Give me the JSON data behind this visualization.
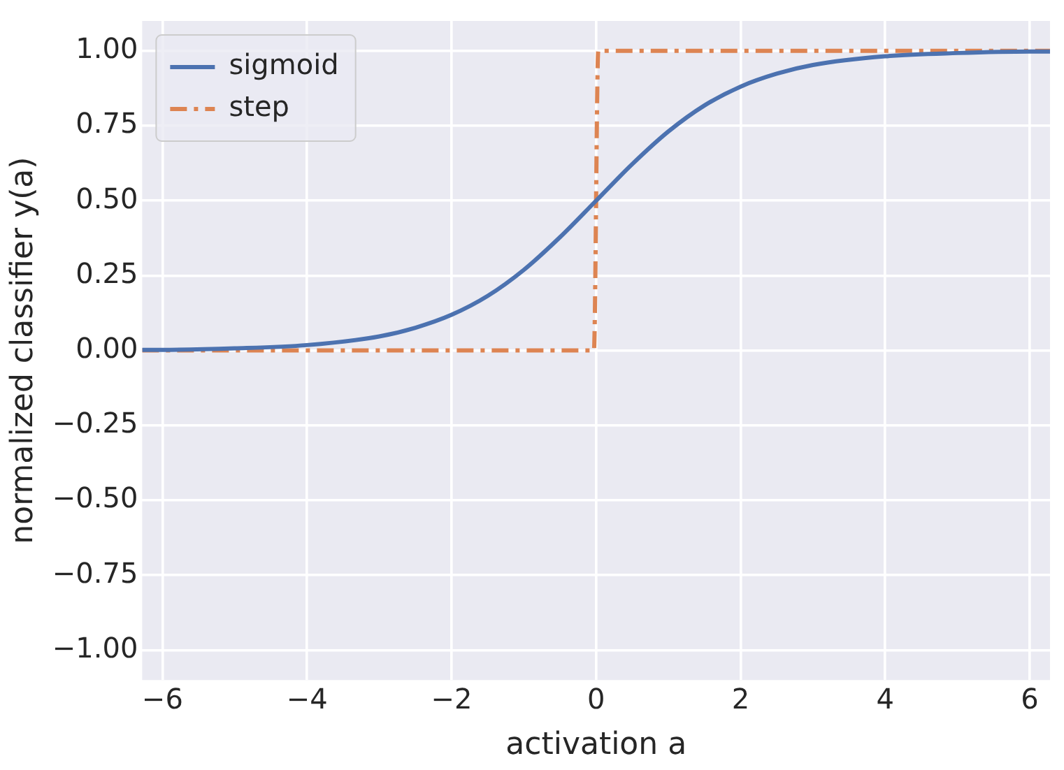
{
  "chart_data": {
    "type": "line",
    "xlabel": "activation a",
    "ylabel": "normalized classifier y(a)",
    "xlim": [
      -6.28,
      6.28
    ],
    "ylim": [
      -1.1,
      1.1
    ],
    "xticks": [
      {
        "value": -6,
        "label": "−6"
      },
      {
        "value": -4,
        "label": "−4"
      },
      {
        "value": -2,
        "label": "−2"
      },
      0,
      2,
      4,
      6
    ],
    "yticks": [
      {
        "value": -1,
        "label": "−1.00"
      },
      {
        "value": -0.75,
        "label": "−0.75"
      },
      {
        "value": -0.5,
        "label": "−0.50"
      },
      {
        "value": -0.25,
        "label": "−0.25"
      },
      {
        "value": 0,
        "label": "0.00"
      },
      {
        "value": 0.25,
        "label": "0.25"
      },
      {
        "value": 0.5,
        "label": "0.50"
      },
      {
        "value": 0.75,
        "label": "0.75"
      },
      {
        "value": 1,
        "label": "1.00"
      }
    ],
    "grid": true,
    "legend": "top left",
    "marker": "none",
    "series": [
      {
        "name": "sigmoid",
        "color": "#4c72b0",
        "line_style": "solid",
        "x": [
          -6.28,
          -6,
          -5,
          -4,
          -3,
          -2.5,
          -2,
          -1.5,
          -1,
          -0.5,
          0,
          0.5,
          1,
          1.5,
          2,
          2.5,
          3,
          4,
          5,
          6,
          6.28
        ],
        "values": [
          0.002,
          0.002,
          0.007,
          0.018,
          0.047,
          0.076,
          0.119,
          0.182,
          0.269,
          0.378,
          0.5,
          0.622,
          0.731,
          0.818,
          0.881,
          0.924,
          0.953,
          0.982,
          0.993,
          0.998,
          0.998
        ]
      },
      {
        "name": "step",
        "color": "#dd8452",
        "line_style": "dashed",
        "x": [
          -6.28,
          -0.03,
          0.03,
          6.28
        ],
        "values": [
          0,
          0,
          1,
          1
        ]
      }
    ]
  }
}
